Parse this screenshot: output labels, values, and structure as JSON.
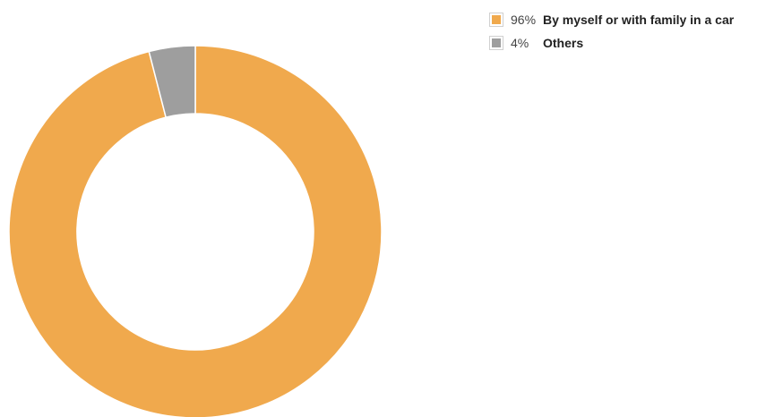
{
  "chart_data": {
    "type": "pie",
    "variant": "donut",
    "series": [
      {
        "values": [
          96,
          4
        ],
        "labels": [
          "By myself or with family in a car",
          "Others"
        ],
        "percent_labels": [
          "96%",
          "4%"
        ],
        "colors": [
          "#f0a94d",
          "#9e9e9e"
        ]
      }
    ],
    "legend_position": "top-right"
  }
}
